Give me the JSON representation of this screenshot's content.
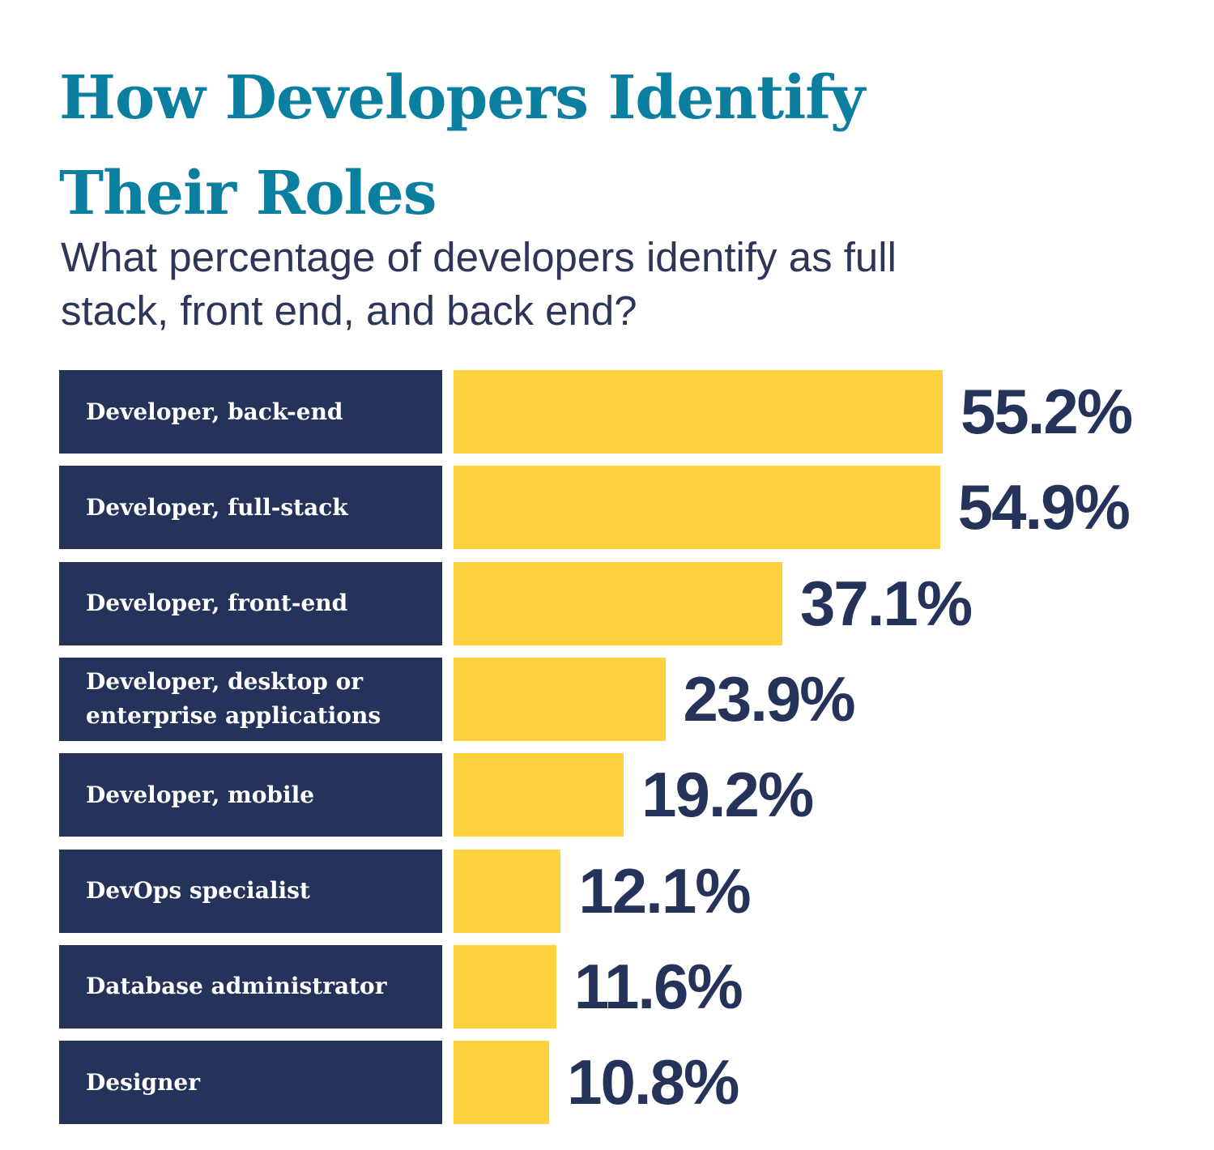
{
  "chart_data": {
    "type": "bar",
    "orientation": "horizontal",
    "title": "How Developers Identify Their Roles",
    "subtitle": "What percentage of developers identify as full stack, front end, and back end?",
    "categories": [
      "Developer, back-end",
      "Developer, full-stack",
      "Developer, front-end",
      "Developer, desktop or enterprise applications",
      "Developer, mobile",
      "DevOps specialist",
      "Database administrator",
      "Designer"
    ],
    "values": [
      55.2,
      54.9,
      37.1,
      23.9,
      19.2,
      12.1,
      11.6,
      10.8
    ],
    "value_labels": [
      "55.2%",
      "54.9%",
      "37.1%",
      "23.9%",
      "19.2%",
      "12.1%",
      "11.6%",
      "10.8%"
    ],
    "color": "#fdd23f",
    "label_box_color": "#25335a"
  }
}
